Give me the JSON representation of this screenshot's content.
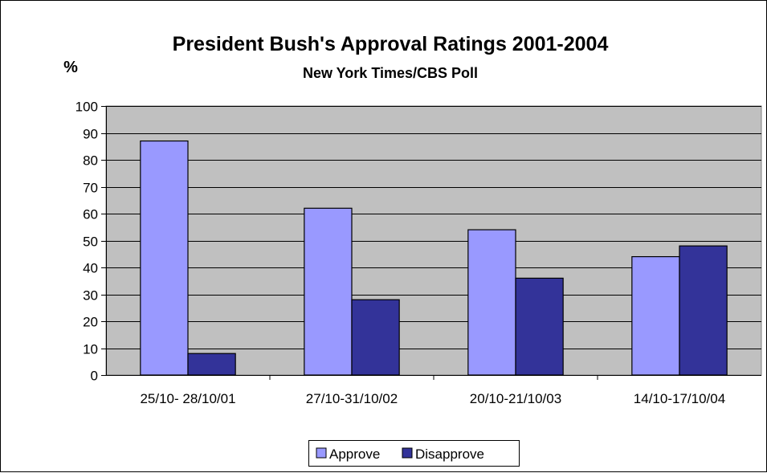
{
  "chart_data": {
    "type": "bar",
    "title": "President Bush's Approval Ratings 2001-2004",
    "subtitle": "New York Times/CBS Poll",
    "ylabel": "%",
    "xlabel": "",
    "ylim": [
      0,
      100
    ],
    "yticks": [
      "0",
      "10",
      "20",
      "30",
      "40",
      "50",
      "60",
      "70",
      "80",
      "90",
      "100"
    ],
    "grid": true,
    "legend_position": "bottom",
    "plot_background": "#c0c0c0",
    "categories": [
      "25/10- 28/10/01",
      "27/10-31/10/02",
      "20/10-21/10/03",
      "14/10-17/10/04"
    ],
    "series": [
      {
        "name": "Approve",
        "color": "#9999ff",
        "values": [
          87,
          62,
          54,
          44
        ]
      },
      {
        "name": "Disapprove",
        "color": "#333399",
        "values": [
          8,
          28,
          36,
          48
        ]
      }
    ]
  }
}
